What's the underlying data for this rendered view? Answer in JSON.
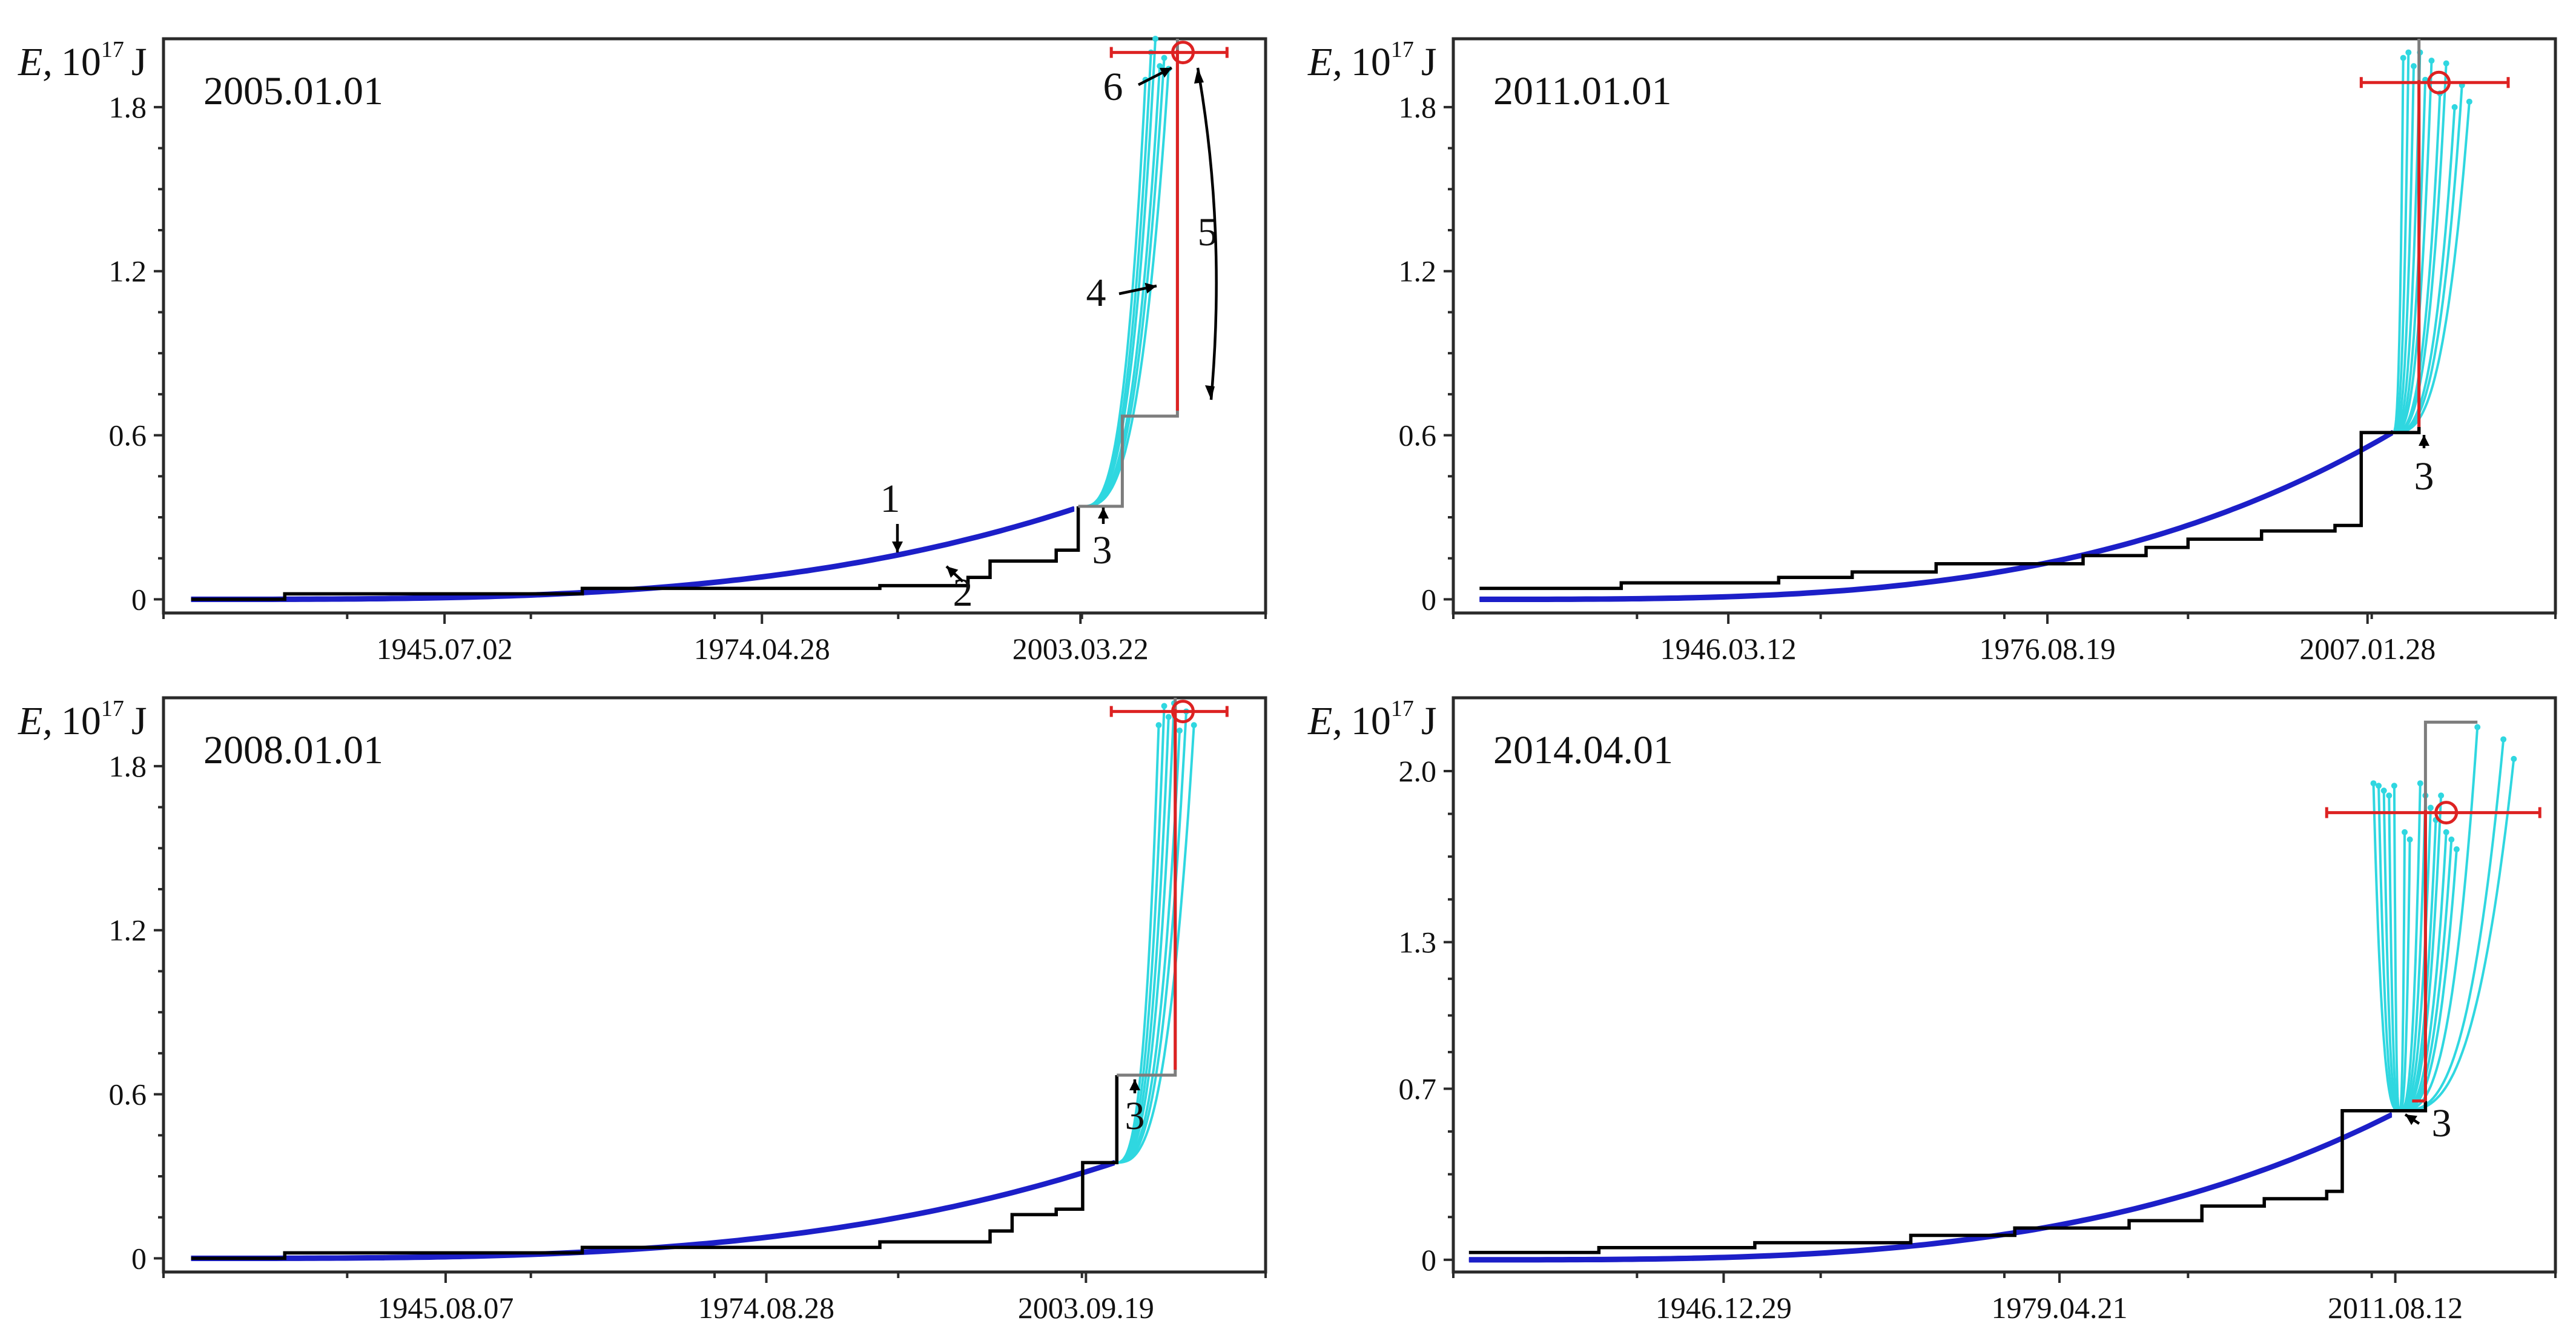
{
  "colors": {
    "staircase": "#000000",
    "grey_step": "#7d7d7d",
    "fit": "#1c1fc8",
    "projection": "#2fd7e0",
    "earthquake": "#dd2222"
  },
  "chart_data": [
    {
      "type": "line",
      "title": "2005.01.01",
      "ylabel_symbol": "E,",
      "ylabel_unit": "10",
      "ylabel_exp": "17",
      "ylabel_tail": "J",
      "y_ticks": [
        "0",
        "0.6",
        "1.2",
        "1.8"
      ],
      "y_tick_values": [
        0,
        0.6,
        1.2,
        1.8
      ],
      "ylim": [
        -0.05,
        2.05
      ],
      "x_tick_labels": [
        "1945.07.02",
        "1974.04.28",
        "2003.03.22"
      ],
      "xlim": [
        1920,
        2020
      ],
      "x_tick_values": [
        1945.5,
        1974.3,
        2003.2
      ],
      "steps": [
        [
          1922.5,
          0.0
        ],
        [
          1931,
          0.02
        ],
        [
          1958,
          0.04
        ],
        [
          1985,
          0.05
        ],
        [
          1993,
          0.08
        ],
        [
          1995,
          0.14
        ],
        [
          2001,
          0.18
        ],
        [
          2003,
          0.34
        ],
        [
          2007,
          0.67
        ],
        [
          2012,
          0.69
        ]
      ],
      "grey_from": 2003.6,
      "eq_time": 2012.5,
      "eq_energy": 2.0,
      "eq_err": [
        2006,
        2016.5
      ],
      "proj_start": 2003.3,
      "proj_endpoints": [
        [
          2009.1,
          1.9
        ],
        [
          2009.6,
          2.0
        ],
        [
          2010,
          2.05
        ],
        [
          2010.4,
          1.95
        ],
        [
          2010.8,
          1.98
        ],
        [
          2011.2,
          1.94
        ]
      ],
      "annotations": [
        "1",
        "2",
        "3",
        "4",
        "5",
        "6"
      ]
    },
    {
      "type": "line",
      "title": "2011.01.01",
      "ylabel_symbol": "E,",
      "ylabel_unit": "10",
      "ylabel_exp": "17",
      "ylabel_tail": "J",
      "y_ticks": [
        "0",
        "0.6",
        "1.2",
        "1.8"
      ],
      "y_tick_values": [
        0,
        0.6,
        1.2,
        1.8
      ],
      "ylim": [
        -0.05,
        2.05
      ],
      "x_tick_labels": [
        "1946.03.12",
        "1976.08.19",
        "2007.01.28"
      ],
      "xlim": [
        1920,
        2025
      ],
      "x_tick_values": [
        1946.2,
        1976.6,
        2007.1
      ],
      "steps": [
        [
          1922.5,
          0.04
        ],
        [
          1936,
          0.06
        ],
        [
          1951,
          0.08
        ],
        [
          1958,
          0.1
        ],
        [
          1966,
          0.13
        ],
        [
          1980,
          0.16
        ],
        [
          1986,
          0.19
        ],
        [
          1990,
          0.22
        ],
        [
          1997,
          0.25
        ],
        [
          2004,
          0.27
        ],
        [
          2006.5,
          0.61
        ],
        [
          2012,
          0.63
        ]
      ],
      "grey_from": 2012,
      "eq_time": 2013.9,
      "eq_energy": 1.89,
      "eq_err": [
        2006.5,
        2020.5
      ],
      "proj_start": 2009.5,
      "proj_endpoints": [
        [
          2010.5,
          1.98
        ],
        [
          2011,
          2.0
        ],
        [
          2011.5,
          1.95
        ],
        [
          2012.1,
          2.0
        ],
        [
          2012.6,
          1.9
        ],
        [
          2013.2,
          1.97
        ],
        [
          2014,
          1.85
        ],
        [
          2014.6,
          1.96
        ],
        [
          2015.4,
          1.8
        ],
        [
          2016.1,
          1.88
        ],
        [
          2016.8,
          1.82
        ]
      ],
      "annotations": [
        "3"
      ]
    },
    {
      "type": "line",
      "title": "2008.01.01",
      "ylabel_symbol": "E,",
      "ylabel_unit": "10",
      "ylabel_exp": "17",
      "ylabel_tail": "J",
      "y_ticks": [
        "0",
        "0.6",
        "1.2",
        "1.8"
      ],
      "y_tick_values": [
        0,
        0.6,
        1.2,
        1.8
      ],
      "ylim": [
        -0.05,
        2.05
      ],
      "x_tick_labels": [
        "1945.08.07",
        "1974.08.28",
        "2003.09.19"
      ],
      "xlim": [
        1920,
        2020
      ],
      "x_tick_values": [
        1945.6,
        1974.7,
        2003.7
      ],
      "steps": [
        [
          1922.5,
          0.0
        ],
        [
          1931,
          0.02
        ],
        [
          1958,
          0.04
        ],
        [
          1985,
          0.06
        ],
        [
          1995,
          0.1
        ],
        [
          1997,
          0.16
        ],
        [
          2001,
          0.18
        ],
        [
          2003.4,
          0.35
        ],
        [
          2006.5,
          0.67
        ],
        [
          2011.8,
          0.69
        ]
      ],
      "grey_from": 2006.5,
      "eq_time": 2012.5,
      "eq_energy": 2.0,
      "eq_err": [
        2006,
        2016.5
      ],
      "proj_start": 2006.3,
      "proj_endpoints": [
        [
          2010.3,
          1.95
        ],
        [
          2010.8,
          2.02
        ],
        [
          2011.2,
          1.98
        ],
        [
          2011.7,
          2.03
        ],
        [
          2012.2,
          1.93
        ],
        [
          2012.8,
          2.0
        ],
        [
          2013.5,
          1.95
        ]
      ],
      "annotations": [
        "3"
      ]
    },
    {
      "type": "line",
      "title": "2014.04.01",
      "ylabel_symbol": "E,",
      "ylabel_unit": "10",
      "ylabel_exp": "17",
      "ylabel_tail": "J",
      "y_ticks": [
        "0",
        "0.7",
        "1.3",
        "2.0"
      ],
      "y_tick_values": [
        0,
        0.7,
        1.3,
        2.0
      ],
      "ylim": [
        -0.05,
        2.3
      ],
      "x_tick_labels": [
        "1946.12.29",
        "1979.04.21",
        "2011.08.12"
      ],
      "xlim": [
        1921,
        2027
      ],
      "x_tick_values": [
        1947.0,
        1979.3,
        2011.6
      ],
      "steps": [
        [
          1922.5,
          0.03
        ],
        [
          1935,
          0.05
        ],
        [
          1950,
          0.07
        ],
        [
          1965,
          0.1
        ],
        [
          1975,
          0.13
        ],
        [
          1986,
          0.16
        ],
        [
          1993,
          0.22
        ],
        [
          1999,
          0.25
        ],
        [
          2005,
          0.28
        ],
        [
          2006.5,
          0.61
        ],
        [
          2014.5,
          0.65
        ]
      ],
      "grey_from": 2014.5,
      "eq_time": 2016.5,
      "eq_energy": 1.83,
      "eq_err": [
        2005,
        2025.5
      ],
      "grey_top": 2.2,
      "grey_top_end": 2019.5,
      "proj_start": 2012,
      "proj_endpoints": [
        [
          2009.5,
          1.95
        ],
        [
          2010,
          1.94
        ],
        [
          2010.5,
          1.92
        ],
        [
          2011,
          1.9
        ],
        [
          2011.5,
          1.94
        ],
        [
          2012.5,
          1.75
        ],
        [
          2013,
          1.72
        ],
        [
          2014,
          1.95
        ],
        [
          2014.5,
          1.9
        ],
        [
          2015,
          1.85
        ],
        [
          2015.5,
          1.8
        ],
        [
          2016,
          1.9
        ],
        [
          2016.5,
          1.75
        ],
        [
          2017,
          1.72
        ],
        [
          2017.5,
          1.68
        ],
        [
          2019.5,
          2.18
        ],
        [
          2022,
          2.13
        ],
        [
          2023,
          2.05
        ]
      ],
      "annotations": [
        "3"
      ]
    }
  ]
}
